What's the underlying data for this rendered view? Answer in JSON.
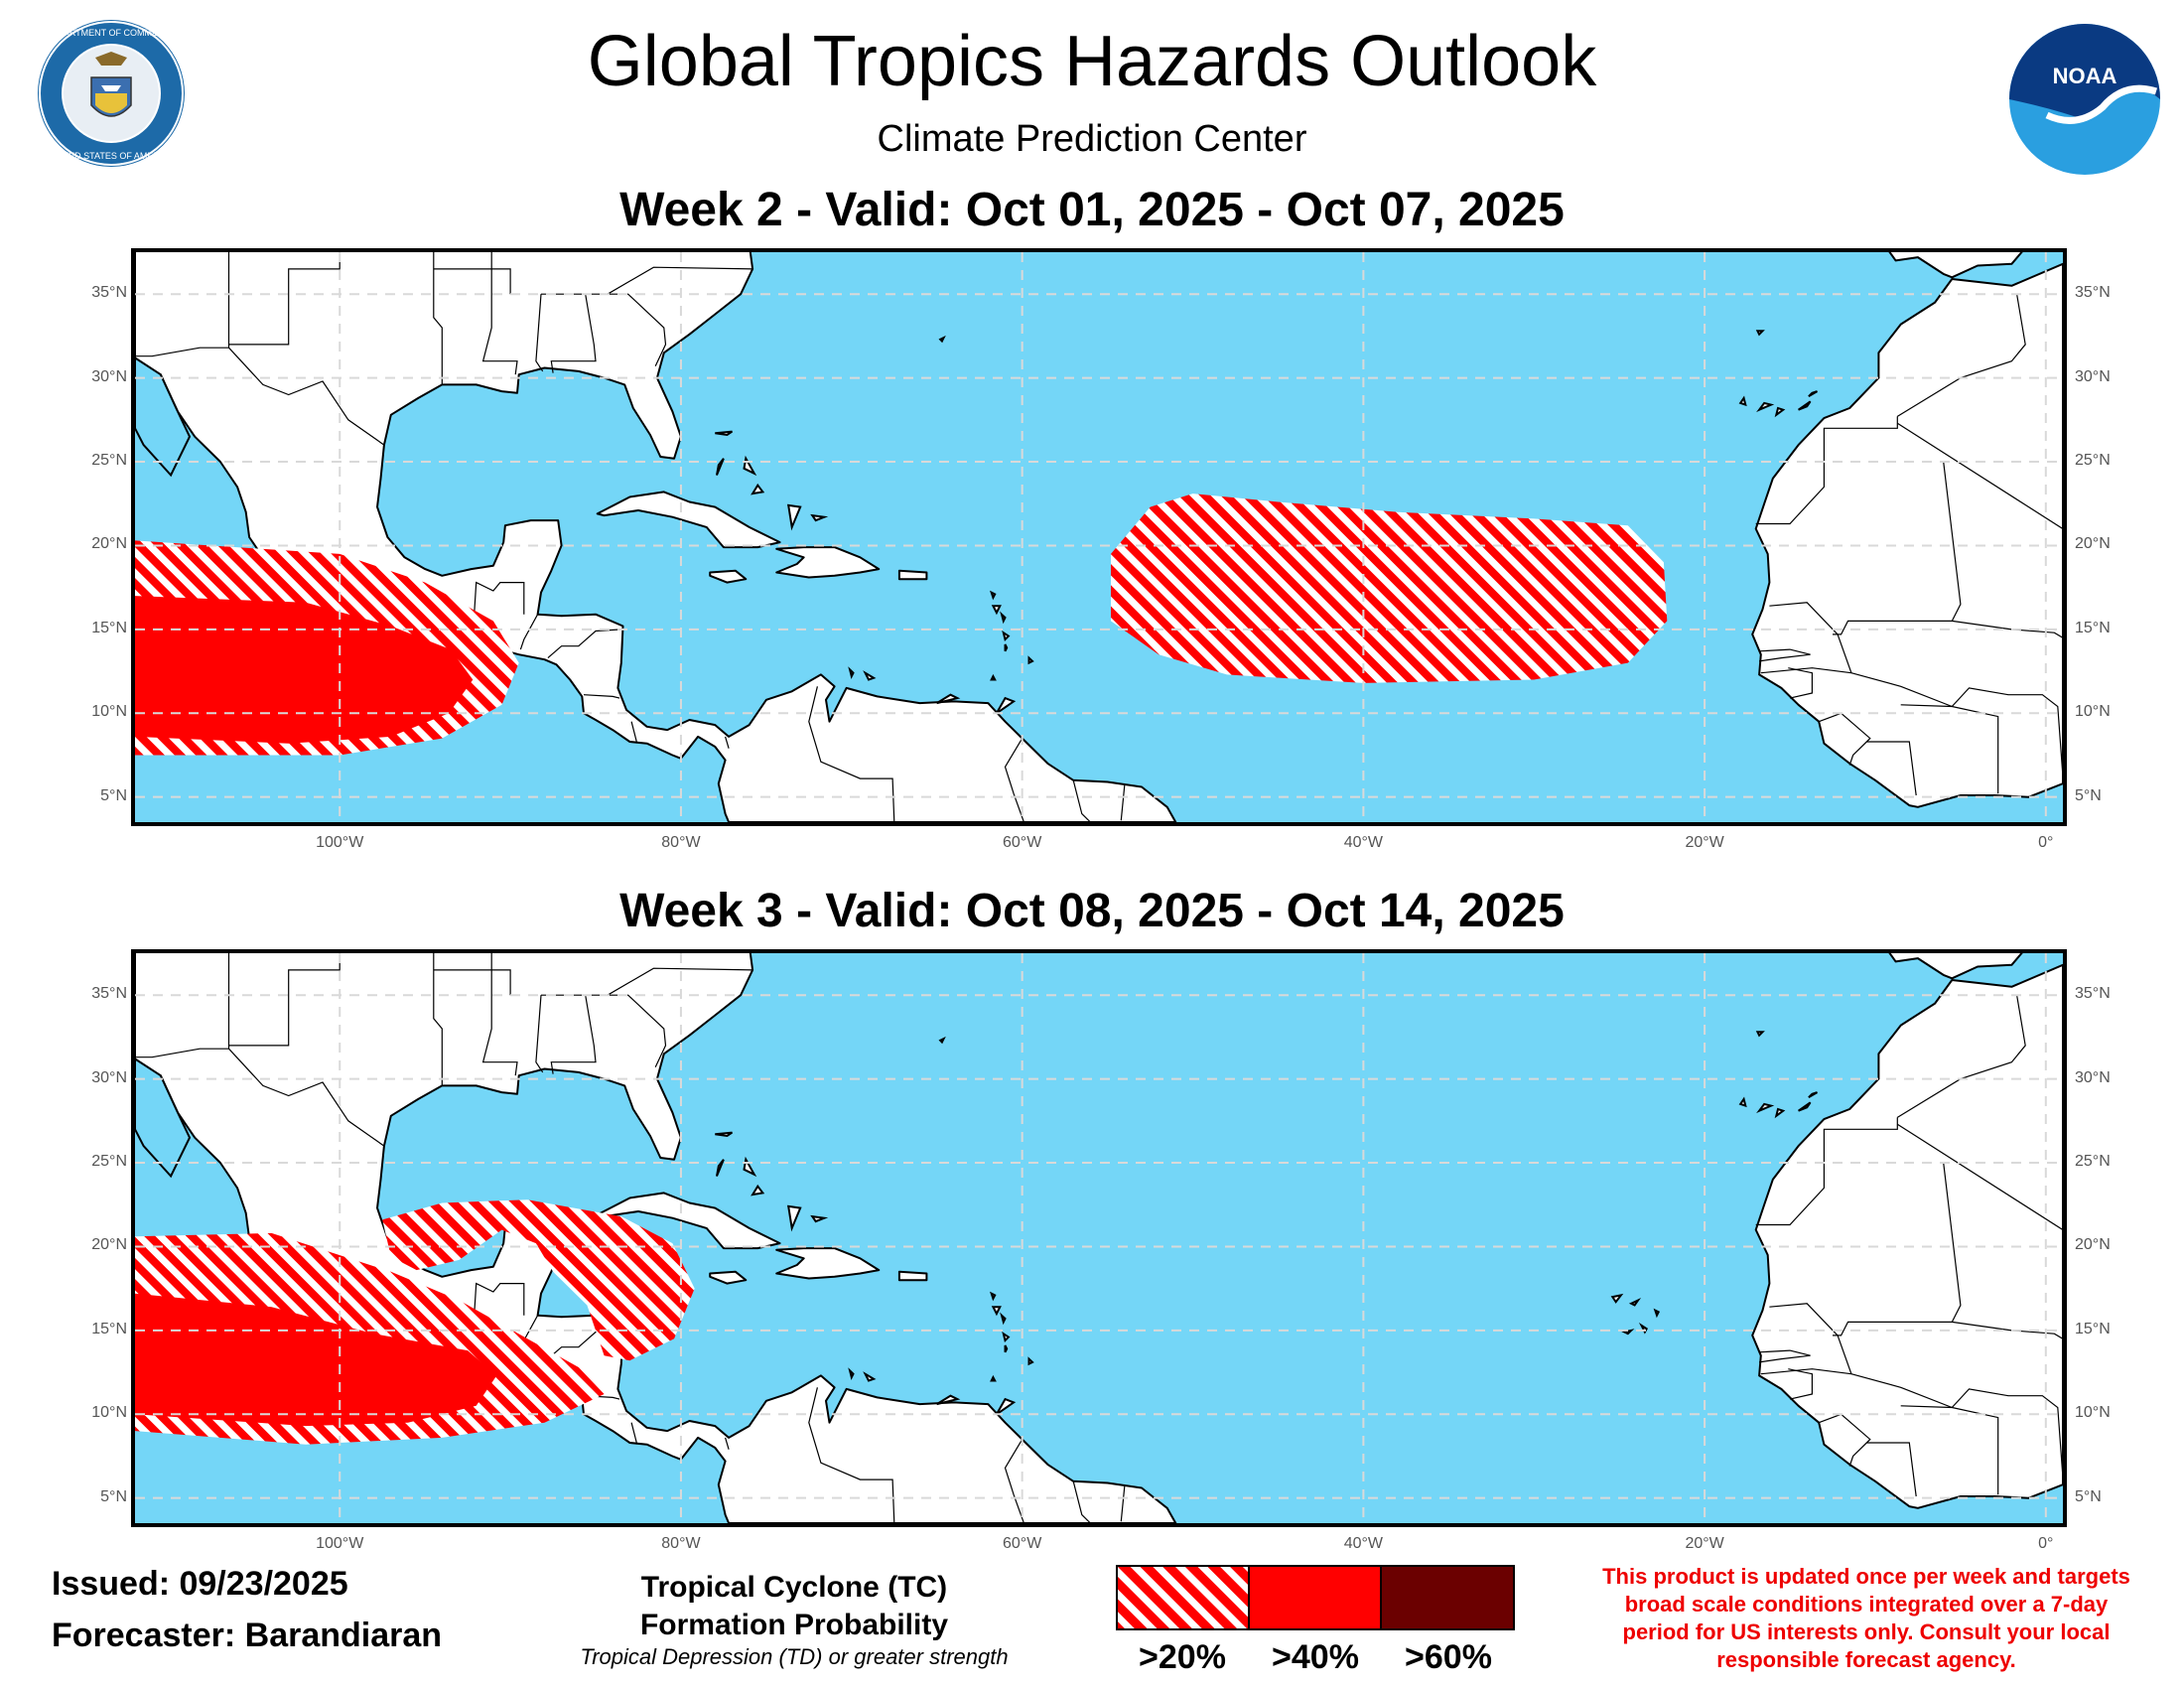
{
  "header": {
    "title": "Global Tropics Hazards Outlook",
    "subtitle": "Climate Prediction Center",
    "seal_text": "DEPARTMENT OF COMMERCE · UNITED STATES OF AMERICA",
    "noaa_logo": "NOAA"
  },
  "colors": {
    "ocean": "#74d6f7",
    "land": "#ffffff",
    "gt20": "#ff0000",
    "gt40": "#ff0000",
    "gt60": "#6b0000"
  },
  "map_extent": {
    "lon": [
      -112,
      1
    ],
    "lat": [
      3.5,
      37.5
    ]
  },
  "lat_ticks": [
    "35°N",
    "30°N",
    "25°N",
    "20°N",
    "15°N",
    "10°N",
    "5°N"
  ],
  "lon_ticks": [
    "100°W",
    "80°W",
    "60°W",
    "40°W",
    "20°W",
    "0°"
  ],
  "panels": [
    {
      "title": "Week 2 - Valid: Oct 01, 2025 - Oct 07, 2025",
      "areas": [
        {
          "probability": ">20%",
          "region": "Eastern Pacific south of Mexico",
          "polygon": [
            [
              -112,
              20.3
            ],
            [
              -100,
              19.5
            ],
            [
              -95,
              17.8
            ],
            [
              -91,
              15.5
            ],
            [
              -89.5,
              13
            ],
            [
              -90.5,
              10.5
            ],
            [
              -94,
              8.5
            ],
            [
              -100,
              7.5
            ],
            [
              -112,
              7.5
            ]
          ]
        },
        {
          "probability": ">40%",
          "region": "Eastern Pacific south of Mexico",
          "polygon": [
            [
              -112,
              17
            ],
            [
              -102,
              16.6
            ],
            [
              -97,
              15.2
            ],
            [
              -93.5,
              13.8
            ],
            [
              -92.2,
              12
            ],
            [
              -93.6,
              10
            ],
            [
              -97,
              8.6
            ],
            [
              -103,
              8.2
            ],
            [
              -112,
              8.6
            ]
          ]
        },
        {
          "probability": ">20%",
          "region": "Central Tropical Atlantic",
          "polygon": [
            [
              -50,
              23.1
            ],
            [
              -45,
              22.6
            ],
            [
              -38,
              22
            ],
            [
              -30,
              21.6
            ],
            [
              -24.5,
              21.2
            ],
            [
              -22.4,
              19
            ],
            [
              -22.2,
              15.5
            ],
            [
              -24.5,
              13
            ],
            [
              -30,
              12
            ],
            [
              -40,
              11.8
            ],
            [
              -48,
              12.3
            ],
            [
              -52,
              13.5
            ],
            [
              -54.8,
              15.5
            ],
            [
              -54.8,
              19.5
            ],
            [
              -52.5,
              22.3
            ]
          ]
        }
      ]
    },
    {
      "title": "Week 3 - Valid: Oct 08, 2025 - Oct 14, 2025",
      "areas": [
        {
          "probability": ">20%",
          "region": "Eastern Pacific south of Mexico",
          "polygon": [
            [
              -112,
              20.6
            ],
            [
              -104,
              20.8
            ],
            [
              -97,
              18.5
            ],
            [
              -93,
              16.8
            ],
            [
              -89,
              14.5
            ],
            [
              -86,
              12.8
            ],
            [
              -84.5,
              11.2
            ],
            [
              -88,
              9.5
            ],
            [
              -94,
              8.6
            ],
            [
              -102,
              8.2
            ],
            [
              -112,
              9
            ]
          ]
        },
        {
          "probability": ">40%",
          "region": "Eastern Pacific south of Mexico",
          "polygon": [
            [
              -112,
              17.2
            ],
            [
              -104,
              16.4
            ],
            [
              -98,
              14.8
            ],
            [
              -92.5,
              13.8
            ],
            [
              -90.8,
              12.3
            ],
            [
              -92,
              10.5
            ],
            [
              -96,
              9.5
            ],
            [
              -102,
              9.3
            ],
            [
              -112,
              10
            ]
          ]
        },
        {
          "probability": ">20%",
          "region": "Southern Gulf of Mexico and Western Caribbean",
          "polygon": [
            [
              -97.5,
              21.6
            ],
            [
              -94,
              22.6
            ],
            [
              -89,
              22.8
            ],
            [
              -83.5,
              21.8
            ],
            [
              -80.5,
              20.2
            ],
            [
              -79.2,
              17.5
            ],
            [
              -80.4,
              14.5
            ],
            [
              -83,
              13.2
            ],
            [
              -84.5,
              13.5
            ],
            [
              -85.5,
              16.5
            ],
            [
              -87.5,
              18.5
            ],
            [
              -88.5,
              20.2
            ],
            [
              -90.5,
              21
            ],
            [
              -93,
              19.2
            ],
            [
              -95.5,
              18.6
            ],
            [
              -97,
              19.4
            ]
          ]
        }
      ]
    }
  ],
  "footer": {
    "issued": "Issued: 09/23/2025",
    "forecaster": "Forecaster: Barandiaran",
    "legend_title_1": "Tropical Cyclone (TC)",
    "legend_title_2": "Formation Probability",
    "legend_subtitle": "Tropical Depression (TD) or greater strength",
    "legend_labels": [
      ">20%",
      ">40%",
      ">60%"
    ],
    "disclaimer_lines": [
      "This product is updated once per week and targets",
      "broad scale conditions integrated over a 7-day",
      "period for US interests only. Consult your local",
      "responsible forecast agency."
    ]
  }
}
